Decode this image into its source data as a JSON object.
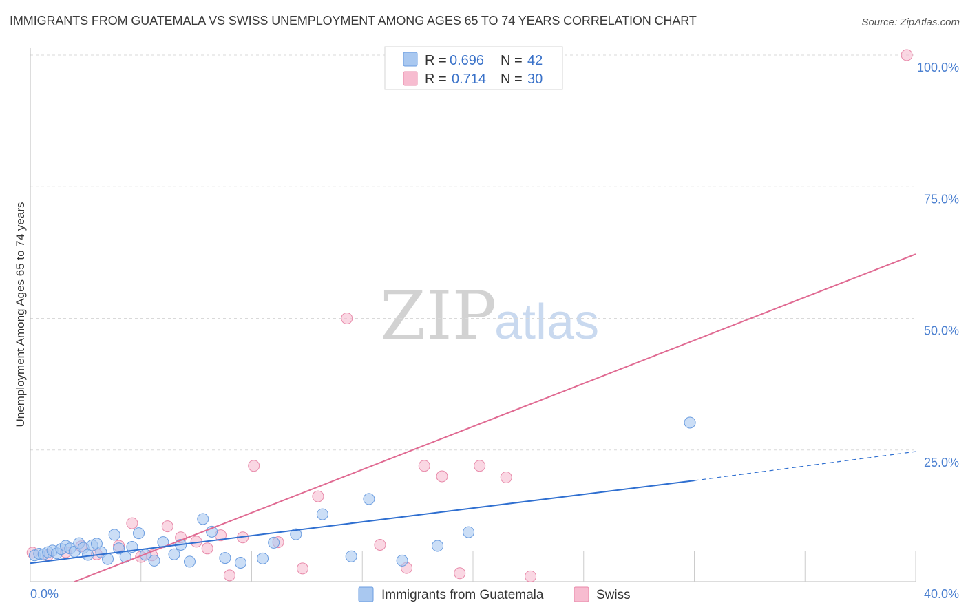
{
  "header": {
    "title": "IMMIGRANTS FROM GUATEMALA VS SWISS UNEMPLOYMENT AMONG AGES 65 TO 74 YEARS CORRELATION CHART",
    "source": "Source: ZipAtlas.com"
  },
  "watermark": {
    "zip": "ZIP",
    "atlas": "atlas"
  },
  "legend": {
    "rows": [
      {
        "r_label": "R =",
        "r_value": "0.696",
        "n_label": "N =",
        "n_value": "42"
      },
      {
        "r_label": "R =",
        "r_value": "0.714",
        "n_label": "N =",
        "n_value": "30"
      }
    ]
  },
  "colors": {
    "blue_fill": "#a9c8f0",
    "blue_stroke": "#6b9de0",
    "blue_line": "#2f6fd0",
    "pink_fill": "#f7bcd0",
    "pink_stroke": "#e88aaa",
    "pink_line": "#e06a92",
    "grid": "#d9d9d9",
    "tick_text": "#4a7fd0"
  },
  "chart_data": {
    "type": "scatter",
    "ylabel": "Unemployment Among Ages 65 to 74 years",
    "xlim": [
      0,
      40
    ],
    "ylim": [
      0,
      100
    ],
    "x_tick_labels": [
      {
        "value": 0,
        "label": "0.0%"
      },
      {
        "value": 40,
        "label": "40.0%"
      }
    ],
    "y_tick_labels": [
      {
        "value": 25,
        "label": "25.0%"
      },
      {
        "value": 50,
        "label": "50.0%"
      },
      {
        "value": 75,
        "label": "75.0%"
      },
      {
        "value": 100,
        "label": "100.0%"
      }
    ],
    "series": [
      {
        "name": "Immigrants from Guatemala",
        "color": "blue",
        "trend": {
          "x0": 0,
          "y0": 3.5,
          "x1": 30,
          "y1": 19.2,
          "dash_x1": 40,
          "dash_y1": 24.7
        },
        "points": [
          [
            0.2,
            5.0
          ],
          [
            0.4,
            5.3
          ],
          [
            0.6,
            5.2
          ],
          [
            0.8,
            5.6
          ],
          [
            1.0,
            5.9
          ],
          [
            1.2,
            5.4
          ],
          [
            1.4,
            6.2
          ],
          [
            1.6,
            6.8
          ],
          [
            1.8,
            6.3
          ],
          [
            2.0,
            5.7
          ],
          [
            2.2,
            7.3
          ],
          [
            2.4,
            6.4
          ],
          [
            2.6,
            5.1
          ],
          [
            2.8,
            6.9
          ],
          [
            3.0,
            7.2
          ],
          [
            3.2,
            5.6
          ],
          [
            3.5,
            4.3
          ],
          [
            3.8,
            8.9
          ],
          [
            4.0,
            6.3
          ],
          [
            4.3,
            4.7
          ],
          [
            4.6,
            6.6
          ],
          [
            4.9,
            9.2
          ],
          [
            5.2,
            5.1
          ],
          [
            5.6,
            4.0
          ],
          [
            6.0,
            7.5
          ],
          [
            6.5,
            5.2
          ],
          [
            6.8,
            7.0
          ],
          [
            7.2,
            3.8
          ],
          [
            7.8,
            11.9
          ],
          [
            8.2,
            9.5
          ],
          [
            8.8,
            4.5
          ],
          [
            9.5,
            3.6
          ],
          [
            10.5,
            4.4
          ],
          [
            11.0,
            7.4
          ],
          [
            12.0,
            9.0
          ],
          [
            13.2,
            12.8
          ],
          [
            14.5,
            4.8
          ],
          [
            15.3,
            15.7
          ],
          [
            16.8,
            4.0
          ],
          [
            18.4,
            6.8
          ],
          [
            19.8,
            9.4
          ],
          [
            29.8,
            30.2
          ]
        ]
      },
      {
        "name": "Swiss",
        "color": "pink",
        "trend": {
          "x0": 2.0,
          "y0": 0,
          "x1": 40,
          "y1": 62.2
        },
        "points": [
          [
            0.1,
            5.5
          ],
          [
            0.8,
            5.0
          ],
          [
            1.6,
            5.6
          ],
          [
            2.3,
            6.7
          ],
          [
            3.0,
            5.2
          ],
          [
            4.0,
            6.8
          ],
          [
            4.6,
            11.1
          ],
          [
            5.0,
            4.7
          ],
          [
            5.5,
            5.0
          ],
          [
            6.2,
            10.5
          ],
          [
            6.8,
            8.4
          ],
          [
            7.5,
            7.6
          ],
          [
            8.0,
            6.3
          ],
          [
            8.6,
            8.8
          ],
          [
            9.0,
            1.2
          ],
          [
            9.6,
            8.4
          ],
          [
            10.1,
            22.0
          ],
          [
            11.2,
            7.5
          ],
          [
            12.3,
            2.5
          ],
          [
            13.0,
            16.2
          ],
          [
            14.3,
            50.0
          ],
          [
            15.8,
            7.0
          ],
          [
            17.0,
            2.6
          ],
          [
            17.8,
            22.0
          ],
          [
            18.6,
            20.0
          ],
          [
            19.4,
            1.6
          ],
          [
            20.3,
            22.0
          ],
          [
            21.5,
            19.8
          ],
          [
            22.6,
            1.0
          ],
          [
            39.6,
            100.0
          ]
        ]
      }
    ]
  },
  "bottom_legend": {
    "items": [
      {
        "label": "Immigrants from Guatemala"
      },
      {
        "label": "Swiss"
      }
    ]
  }
}
